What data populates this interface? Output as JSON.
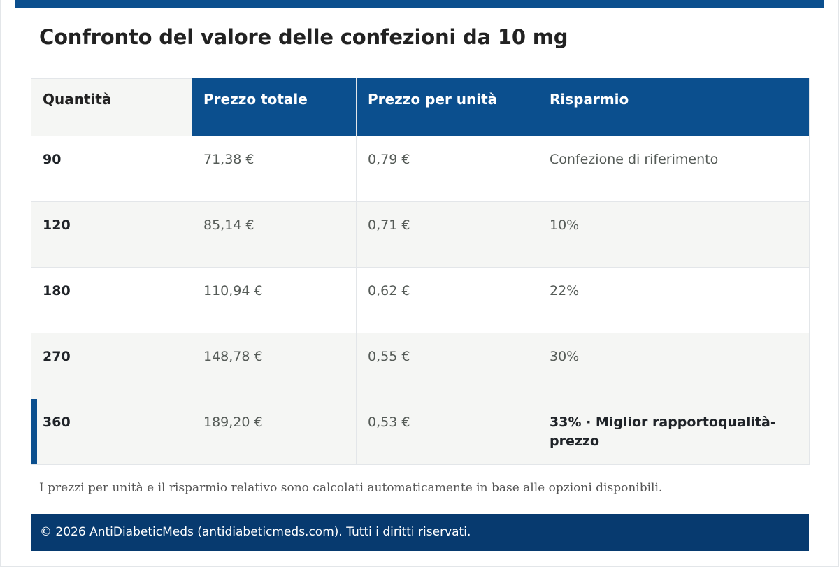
{
  "title": "Confronto del valore delle confezioni da 10 mg",
  "table": {
    "headers": [
      "Quantità",
      "Prezzo totale",
      "Prezzo per unità",
      "Risparmio"
    ],
    "rows": [
      {
        "quantity": "90",
        "total": "71,38 €",
        "unit": "0,79 €",
        "savings": "Confezione di riferimento"
      },
      {
        "quantity": "120",
        "total": "85,14 €",
        "unit": "0,71 €",
        "savings": "10%"
      },
      {
        "quantity": "180",
        "total": "110,94 €",
        "unit": "0,62 €",
        "savings": "22%"
      },
      {
        "quantity": "270",
        "total": "148,78 €",
        "unit": "0,55 €",
        "savings": "30%"
      },
      {
        "quantity": "360",
        "total": "189,20 €",
        "unit": "0,53 €",
        "savings": "33% · Miglior rapportoqualità-prezzo"
      }
    ]
  },
  "note": "I prezzi per unità e il risparmio relativo sono calcolati automaticamente in base alle opzioni disponibili.",
  "footer": "© 2026 AntiDiabeticMeds (antidiabeticmeds.com). Tutti i diritti riservati.",
  "colors": {
    "accent": "#0b4f8e",
    "footer": "#073a6f",
    "alt_row": "#f5f6f4"
  }
}
